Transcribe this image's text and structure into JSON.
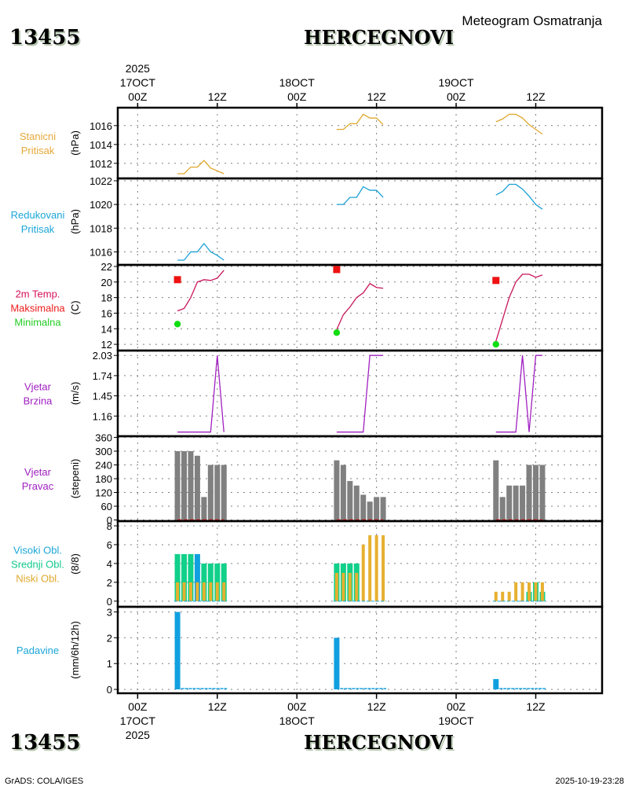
{
  "header": {
    "station_id": "13455",
    "station_name": "HERCEGNOVI",
    "subtitle": "Meteogram Osmatranja"
  },
  "footer": {
    "station_id": "13455",
    "station_name": "HERCEGNOVI",
    "credit": "GrADS: COLA/IGES",
    "timestamp": "2025-10-19-23:28"
  },
  "time_axis": {
    "year": "2025",
    "ticks": [
      {
        "hour": 0,
        "label": "00Z",
        "date": "17OCT",
        "year": "2025"
      },
      {
        "hour": 12,
        "label": "12Z"
      },
      {
        "hour": 24,
        "label": "00Z",
        "date": "18OCT"
      },
      {
        "hour": 36,
        "label": "12Z"
      },
      {
        "hour": 48,
        "label": "00Z",
        "date": "19OCT"
      },
      {
        "hour": 60,
        "label": "12Z"
      }
    ],
    "range_hours": [
      -3,
      70
    ]
  },
  "chart_data": [
    {
      "type": "line",
      "id": "station-pressure",
      "labels": [
        "Stanicni",
        "Pritisak"
      ],
      "label_color": "#e6a83a",
      "ylabel": "(hPa)",
      "yticks": [
        1012,
        1014,
        1016
      ],
      "ylim": [
        1010.4,
        1017.9
      ],
      "color": "#e0a82e",
      "segments": [
        {
          "x": [
            6,
            7,
            8,
            9,
            10,
            11,
            12,
            13
          ],
          "y": [
            1010.9,
            1010.9,
            1011.6,
            1011.6,
            1012.3,
            1011.5,
            1011.2,
            1010.9
          ]
        },
        {
          "x": [
            30,
            31,
            32,
            33,
            34,
            35,
            36,
            37
          ],
          "y": [
            1015.6,
            1015.6,
            1016.2,
            1016.2,
            1017.2,
            1016.8,
            1016.8,
            1016.1
          ]
        },
        {
          "x": [
            54,
            55,
            56,
            57,
            58,
            59,
            60,
            61
          ],
          "y": [
            1016.4,
            1016.7,
            1017.2,
            1017.2,
            1016.8,
            1016.1,
            1015.6,
            1015.1
          ]
        }
      ]
    },
    {
      "type": "line",
      "id": "reduced-pressure",
      "labels": [
        "Redukovani",
        "Pritisak"
      ],
      "label_color": "#1ba6d8",
      "ylabel": "(hPa)",
      "yticks": [
        1016,
        1018,
        1020,
        1022
      ],
      "ylim": [
        1014.9,
        1022.2
      ],
      "color": "#1ba0d6",
      "segments": [
        {
          "x": [
            6,
            7,
            8,
            9,
            10,
            11,
            12,
            13
          ],
          "y": [
            1015.3,
            1015.3,
            1016.0,
            1016.0,
            1016.7,
            1016.0,
            1015.7,
            1015.3
          ]
        },
        {
          "x": [
            30,
            31,
            32,
            33,
            34,
            35,
            36,
            37
          ],
          "y": [
            1020.0,
            1020.0,
            1020.6,
            1020.6,
            1021.5,
            1021.2,
            1021.2,
            1020.6
          ]
        },
        {
          "x": [
            54,
            55,
            56,
            57,
            58,
            59,
            60,
            61
          ],
          "y": [
            1020.8,
            1021.1,
            1021.7,
            1021.7,
            1021.3,
            1020.7,
            1020.0,
            1019.6
          ]
        }
      ]
    },
    {
      "type": "line",
      "id": "temperature",
      "labels": [
        "2m Temp.",
        "Maksimalna",
        "Minimalna"
      ],
      "label_colors": [
        "#d6125a",
        "#ee1c1c",
        "#22cc22"
      ],
      "ylabel": "(C)",
      "yticks": [
        12,
        14,
        16,
        18,
        20,
        22
      ],
      "ylim": [
        11.2,
        22.2
      ],
      "color": "#c8145a",
      "max_color": "#ee1111",
      "min_color": "#11dd11",
      "segments": [
        {
          "x": [
            6,
            7,
            8,
            9,
            10,
            11,
            12,
            13
          ],
          "y": [
            16.3,
            16.6,
            18.0,
            20.0,
            20.3,
            20.2,
            20.5,
            21.5
          ],
          "max": {
            "x": 6,
            "y": 20.3
          },
          "min": {
            "x": 6,
            "y": 14.6
          }
        },
        {
          "x": [
            30,
            31,
            32,
            33,
            34,
            35,
            36,
            37
          ],
          "y": [
            13.9,
            15.8,
            16.8,
            18.0,
            18.6,
            19.8,
            19.3,
            19.2
          ],
          "max": {
            "x": 30,
            "y": 21.6
          },
          "min": {
            "x": 30,
            "y": 13.5
          }
        },
        {
          "x": [
            54,
            55,
            56,
            57,
            58,
            59,
            60,
            61
          ],
          "y": [
            12.4,
            15.2,
            18.0,
            20.0,
            21.0,
            21.0,
            20.6,
            20.9
          ],
          "max": {
            "x": 54,
            "y": 20.2
          },
          "min": {
            "x": 54,
            "y": 12.0
          }
        }
      ]
    },
    {
      "type": "line",
      "id": "wind-speed",
      "labels": [
        "Vjetar",
        "Brzina"
      ],
      "label_color": "#a020c0",
      "ylabel": "(m/s)",
      "yticks": [
        1.16,
        1.45,
        1.74,
        2.03
      ],
      "ylim": [
        0.87,
        2.1
      ],
      "color": "#a020c0",
      "segments": [
        {
          "x": [
            6,
            7,
            8,
            9,
            10,
            11,
            12,
            13
          ],
          "y": [
            0.93,
            0.93,
            0.93,
            0.93,
            0.93,
            0.93,
            2.03,
            0.93
          ]
        },
        {
          "x": [
            30,
            31,
            32,
            33,
            34,
            35,
            36,
            37
          ],
          "y": [
            0.93,
            0.93,
            0.93,
            0.93,
            0.93,
            2.03,
            2.03,
            2.03
          ]
        },
        {
          "x": [
            54,
            55,
            56,
            57,
            58,
            59,
            60,
            61
          ],
          "y": [
            0.93,
            0.93,
            0.93,
            0.93,
            2.03,
            0.93,
            2.03,
            2.03
          ]
        }
      ]
    },
    {
      "type": "bar",
      "id": "wind-direction",
      "labels": [
        "Vjetar",
        "Pravac"
      ],
      "label_color": "#a020c0",
      "ylabel": "(stepeni)",
      "yticks": [
        0,
        60,
        120,
        180,
        240,
        300,
        360
      ],
      "ylim": [
        -5,
        365
      ],
      "color": "#808080",
      "baseline_color": "#dd1111",
      "segments": [
        {
          "x": [
            6,
            7,
            8,
            9,
            10,
            11,
            12,
            13
          ],
          "y": [
            300,
            300,
            300,
            280,
            100,
            240,
            240,
            240
          ]
        },
        {
          "x": [
            30,
            31,
            32,
            33,
            34,
            35,
            36,
            37
          ],
          "y": [
            260,
            240,
            170,
            150,
            110,
            80,
            100,
            100
          ]
        },
        {
          "x": [
            54,
            55,
            56,
            57,
            58,
            59,
            60,
            61
          ],
          "y": [
            260,
            100,
            150,
            150,
            150,
            240,
            240,
            240
          ]
        }
      ]
    },
    {
      "type": "bar",
      "id": "cloud-cover",
      "labels": [
        "Visoki Obl.",
        "Srednji Obl.",
        "Niski Obl."
      ],
      "label_colors": [
        "#1ba6d8",
        "#11c98a",
        "#e0a82e"
      ],
      "ylabel": "(8/8)",
      "yticks": [
        0,
        2,
        4,
        6,
        8
      ],
      "ylim": [
        -0.6,
        8.5
      ],
      "series": [
        {
          "name": "Visoki Obl.",
          "color": "#10a0e0"
        },
        {
          "name": "Srednji Obl.",
          "color": "#11d08a"
        },
        {
          "name": "Niski Obl.",
          "color": "#e6b030"
        }
      ],
      "segments": [
        {
          "x": [
            6,
            7,
            8,
            9,
            10,
            11,
            12,
            13
          ],
          "high": [
            0,
            0,
            0,
            5,
            0,
            0,
            0,
            0
          ],
          "mid": [
            5,
            5,
            5,
            0,
            4,
            4,
            4,
            4
          ],
          "low": [
            2,
            2,
            2,
            2,
            2,
            2,
            2,
            2
          ]
        },
        {
          "x": [
            30,
            31,
            32,
            33,
            34,
            35,
            36,
            37
          ],
          "high": [
            0,
            0,
            0,
            0,
            0,
            0,
            0,
            0
          ],
          "mid": [
            4,
            4,
            4,
            4,
            0,
            0,
            0,
            0
          ],
          "low": [
            3,
            3,
            3,
            3,
            6,
            7,
            7,
            7
          ]
        },
        {
          "x": [
            54,
            55,
            56,
            57,
            58,
            59,
            60,
            61
          ],
          "high": [
            0,
            0,
            0,
            0,
            0,
            0,
            0,
            0
          ],
          "mid": [
            0,
            0,
            0,
            0,
            0,
            1,
            2,
            1
          ],
          "low": [
            1,
            1,
            1,
            2,
            2,
            2,
            2,
            2
          ]
        }
      ]
    },
    {
      "type": "bar",
      "id": "precipitation",
      "labels": [
        "Padavine"
      ],
      "label_color": "#1ba6d8",
      "ylabel": "(mm/6h/12h)",
      "yticks": [
        0,
        1,
        2,
        3
      ],
      "ylim": [
        -0.15,
        3.2
      ],
      "color": "#10a0e0",
      "segments": [
        {
          "x": [
            6,
            7,
            8,
            9,
            10,
            11,
            12,
            13
          ],
          "y": [
            3.0,
            0.02,
            0.02,
            0.02,
            0.02,
            0.02,
            0.02,
            0.02
          ]
        },
        {
          "x": [
            30,
            31,
            32,
            33,
            34,
            35,
            36,
            37
          ],
          "y": [
            2.0,
            0.02,
            0.02,
            0.02,
            0.02,
            0.02,
            0.02,
            0.02
          ]
        },
        {
          "x": [
            54,
            55,
            56,
            57,
            58,
            59,
            60,
            61
          ],
          "y": [
            0.4,
            0.02,
            0.02,
            0.02,
            0.02,
            0.02,
            0.02,
            0.02
          ]
        }
      ]
    }
  ]
}
